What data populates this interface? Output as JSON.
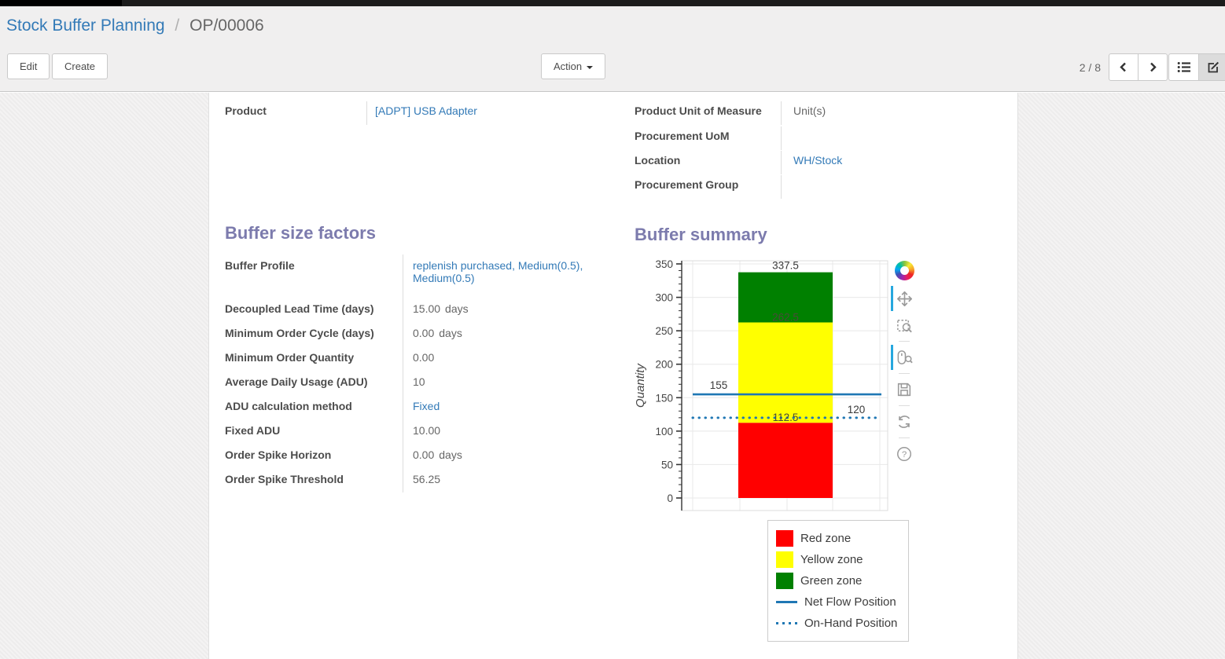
{
  "breadcrumb": {
    "parent": "Stock Buffer Planning",
    "separator": "/",
    "current": "OP/00006"
  },
  "toolbar": {
    "edit_label": "Edit",
    "create_label": "Create",
    "action_label": "Action",
    "pager": "2 / 8",
    "icons": [
      "previous-page-icon",
      "next-page-icon",
      "list-view-icon",
      "form-view-icon"
    ],
    "active_view": "form"
  },
  "form": {
    "left_fields": [
      {
        "label": "Product",
        "value": "[ADPT] USB Adapter",
        "is_link": true
      }
    ],
    "right_fields": [
      {
        "label": "Product Unit of Measure",
        "value": "Unit(s)",
        "is_link": false
      },
      {
        "label": "Procurement UoM",
        "value": "",
        "is_link": false
      },
      {
        "label": "Location",
        "value": "WH/Stock",
        "is_link": true
      },
      {
        "label": "Procurement Group",
        "value": "",
        "is_link": false
      }
    ]
  },
  "buffer_factors": {
    "title": "Buffer size factors",
    "rows": [
      {
        "label": "Buffer Profile",
        "value": "replenish purchased, Medium(0.5), Medium(0.5)",
        "suffix": "",
        "is_link": true
      },
      {
        "label": "Decoupled Lead Time (days)",
        "value": "15.00",
        "suffix": "days",
        "is_link": false
      },
      {
        "label": "Minimum Order Cycle (days)",
        "value": "0.00",
        "suffix": "days",
        "is_link": false
      },
      {
        "label": "Minimum Order Quantity",
        "value": "0.00",
        "suffix": "",
        "is_link": false
      },
      {
        "label": "Average Daily Usage (ADU)",
        "value": "10",
        "suffix": "",
        "is_link": false
      },
      {
        "label": "ADU calculation method",
        "value": "Fixed",
        "suffix": "",
        "is_link": true
      },
      {
        "label": "Fixed ADU",
        "value": "10.00",
        "suffix": "",
        "is_link": false
      },
      {
        "label": "Order Spike Horizon",
        "value": "0.00",
        "suffix": "days",
        "is_link": false
      },
      {
        "label": "Order Spike Threshold",
        "value": "56.25",
        "suffix": "",
        "is_link": false
      }
    ]
  },
  "buffer_summary": {
    "title": "Buffer summary",
    "bokeh_toolbar": {
      "icons": [
        "bokeh-logo",
        "pan-tool-icon",
        "box-zoom-icon",
        "wheel-zoom-icon",
        "save-icon",
        "reset-icon",
        "help-icon"
      ],
      "active_tools": [
        "pan-tool-icon",
        "wheel-zoom-icon"
      ]
    }
  },
  "chart_data": {
    "type": "bar",
    "title": "",
    "xlabel": "",
    "ylabel": "Quantity",
    "ylim": [
      0,
      350
    ],
    "yticks": [
      0,
      50,
      100,
      150,
      200,
      250,
      300,
      350
    ],
    "minor_tick_step": 10,
    "grid": true,
    "legend_position": "below",
    "zones": [
      {
        "name": "Red zone",
        "from": 0,
        "to": 112.5,
        "color": "#ff0000",
        "label": "112.5"
      },
      {
        "name": "Yellow zone",
        "from": 112.5,
        "to": 262.5,
        "color": "#ffff00",
        "label": "262.5"
      },
      {
        "name": "Green zone",
        "from": 262.5,
        "to": 337.5,
        "color": "#008000",
        "label": "337.5"
      }
    ],
    "lines": [
      {
        "name": "Net Flow Position",
        "value": 155,
        "style": "solid",
        "color": "#1f77b4",
        "label": "155"
      },
      {
        "name": "On-Hand Position",
        "value": 120,
        "style": "dotted",
        "color": "#1f77b4",
        "label": "120"
      }
    ]
  }
}
